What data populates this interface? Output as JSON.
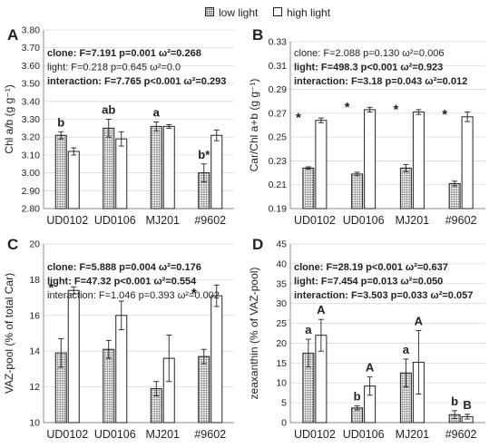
{
  "legend": {
    "items": [
      {
        "label": "low light",
        "key": "low"
      },
      {
        "label": "high light",
        "key": "high"
      }
    ]
  },
  "colors": {
    "axis": "#8c8c8c",
    "grid": "#d9d9d9",
    "bar_outline": "#222222",
    "low_fill_pattern": "dotted-gray",
    "high_fill": "#ffffff",
    "text": "#222222"
  },
  "chart_data": [
    {
      "panel": "A",
      "type": "bar",
      "ylabel": "Chl a/b (g g⁻¹)",
      "ylim": [
        2.8,
        3.8
      ],
      "yticks": [
        2.8,
        2.9,
        3.0,
        3.1,
        3.2,
        3.3,
        3.4,
        3.5,
        3.6,
        3.7,
        3.8
      ],
      "yticklabels": [
        "2.80",
        "2.90",
        "3.00",
        "3.10",
        "3.20",
        "3.30",
        "3.40",
        "3.50",
        "3.60",
        "3.70",
        "3.80"
      ],
      "categories": [
        "UD0102",
        "UD0106",
        "MJ201",
        "#9602"
      ],
      "series": [
        {
          "name": "low light",
          "values": [
            3.21,
            3.25,
            3.26,
            3.0
          ],
          "errors": [
            0.02,
            0.05,
            0.025,
            0.05
          ]
        },
        {
          "name": "high light",
          "values": [
            3.12,
            3.19,
            3.26,
            3.21
          ],
          "errors": [
            0.02,
            0.04,
            0.01,
            0.03
          ]
        }
      ],
      "stats": [
        {
          "text": "clone: F=7.191 p=0.001 ω²=0.268",
          "bold": true
        },
        {
          "text": "light: F=0.218 p=0.645 ω²=0.0",
          "bold": false
        },
        {
          "text": "interaction: F=7.765 p<0.001 ω²=0.293",
          "bold": true
        }
      ],
      "annotations": [
        {
          "category": 0,
          "series": 0,
          "text": "b"
        },
        {
          "category": 1,
          "series": 0,
          "text": "ab"
        },
        {
          "category": 2,
          "series": 0,
          "text": "a"
        },
        {
          "category": 3,
          "series": 0,
          "text": "b*"
        }
      ]
    },
    {
      "panel": "B",
      "type": "bar",
      "ylabel": "Car/Chl a+b (g g⁻¹)",
      "ylim": [
        0.19,
        0.33
      ],
      "yticks": [
        0.19,
        0.21,
        0.23,
        0.25,
        0.27,
        0.29,
        0.31,
        0.33
      ],
      "yticklabels": [
        "0.19",
        "0.21",
        "0.23",
        "0.25",
        "0.27",
        "0.29",
        "0.31",
        "0.33"
      ],
      "categories": [
        "UD0102",
        "UD0106",
        "MJ201",
        "#9602"
      ],
      "series": [
        {
          "name": "low light",
          "values": [
            0.224,
            0.219,
            0.224,
            0.211
          ],
          "errors": [
            0.001,
            0.0015,
            0.003,
            0.002
          ]
        },
        {
          "name": "high light",
          "values": [
            0.264,
            0.273,
            0.271,
            0.267
          ],
          "errors": [
            0.002,
            0.002,
            0.002,
            0.004
          ]
        }
      ],
      "stats": [
        {
          "text": "clone: F=2.088 p=0.130 ω²=0.006",
          "bold": false
        },
        {
          "text": "light: F=498.3 p<0.001 ω²=0.923",
          "bold": true
        },
        {
          "text": "interaction: F=3.18 p=0.043 ω²=0.012",
          "bold": true
        }
      ],
      "annotations": [
        {
          "category": 0,
          "series": 0,
          "text": "*"
        },
        {
          "category": 1,
          "series": 0,
          "text": "*"
        },
        {
          "category": 2,
          "series": 0,
          "text": "*"
        },
        {
          "category": 3,
          "series": 0,
          "text": "*"
        }
      ]
    },
    {
      "panel": "C",
      "type": "bar",
      "ylabel": "VAZ-pool (% of total Car)",
      "ylim": [
        10,
        20
      ],
      "yticks": [
        10,
        12,
        14,
        16,
        18,
        20
      ],
      "yticklabels": [
        "10",
        "12",
        "14",
        "16",
        "18",
        "20"
      ],
      "categories": [
        "UD0102",
        "UD0106",
        "MJ201",
        "#9602"
      ],
      "series": [
        {
          "name": "low light",
          "values": [
            13.9,
            14.1,
            11.9,
            13.7
          ],
          "errors": [
            0.8,
            0.5,
            0.4,
            0.4
          ]
        },
        {
          "name": "high light",
          "values": [
            17.4,
            16.0,
            13.6,
            17.1
          ],
          "errors": [
            0.2,
            0.8,
            1.3,
            0.6
          ]
        }
      ],
      "stats": [
        {
          "text": "clone: F=5.888 p=0.004 ω²=0.176",
          "bold": true
        },
        {
          "text": "light: F=47.32 p<0.001 ω²=0.554",
          "bold": true
        },
        {
          "text": "interaction: F=1.046 p=0.393 ω²=0.002",
          "bold": false
        }
      ],
      "annotations": [
        {
          "category": 0,
          "series": 0,
          "text": "*"
        },
        {
          "category": 3,
          "series": 0,
          "text": "*"
        }
      ]
    },
    {
      "panel": "D",
      "type": "bar",
      "ylabel": "zeaxanthin (% of VAZ-pool)",
      "ylim": [
        0,
        45
      ],
      "yticks": [
        0,
        5,
        10,
        15,
        20,
        25,
        30,
        35,
        40,
        45
      ],
      "yticklabels": [
        "0",
        "5",
        "10",
        "15",
        "20",
        "25",
        "30",
        "35",
        "40",
        "45"
      ],
      "categories": [
        "UD0102",
        "UD0106",
        "MJ201",
        "#9602"
      ],
      "series": [
        {
          "name": "low light",
          "values": [
            17.5,
            3.7,
            12.5,
            2.0
          ],
          "errors": [
            3.5,
            0.5,
            3.5,
            1.0
          ]
        },
        {
          "name": "high light",
          "values": [
            22.0,
            9.2,
            15.2,
            1.5
          ],
          "errors": [
            4.0,
            2.3,
            8.0,
            0.6
          ]
        }
      ],
      "stats": [
        {
          "text": "clone: F=28.19 p<0.001 ω²=0.637",
          "bold": true
        },
        {
          "text": "light: F=7.454 p=0.013 ω²=0.050",
          "bold": true
        },
        {
          "text": "interaction: F=3.503 p=0.033 ω²=0.057",
          "bold": true
        }
      ],
      "annotations": [
        {
          "category": 0,
          "series": 0,
          "text": "a"
        },
        {
          "category": 0,
          "series": 1,
          "text": "A"
        },
        {
          "category": 1,
          "series": 0,
          "text": "b"
        },
        {
          "category": 1,
          "series": 1,
          "text": "A"
        },
        {
          "category": 2,
          "series": 0,
          "text": "a"
        },
        {
          "category": 2,
          "series": 1,
          "text": "A"
        },
        {
          "category": 3,
          "series": 0,
          "text": "b"
        },
        {
          "category": 3,
          "series": 1,
          "text": "B"
        }
      ]
    }
  ]
}
